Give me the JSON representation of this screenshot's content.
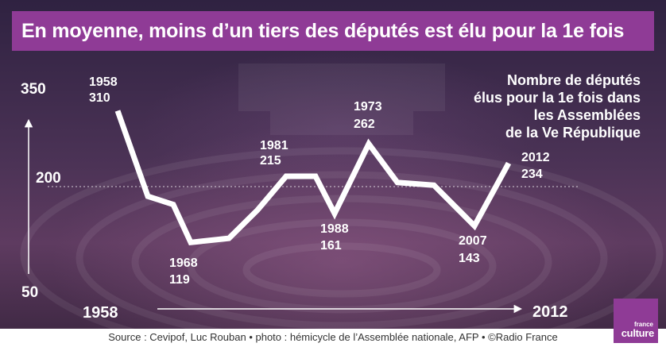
{
  "title": "En moyenne, moins d’un tiers des députés est élu pour la 1e fois",
  "legend_lines": [
    "Nombre de députés",
    "élus pour la 1e fois dans",
    "les Assemblées",
    "de la Ve République"
  ],
  "source": "Source : Cevipof, Luc Rouban  •  photo : hémicycle de l’Assemblée nationale, AFP  •  ©Radio France",
  "logo": {
    "small": "france",
    "big": "culture"
  },
  "colors": {
    "title_bg": "#8f3b96",
    "line": "#ffffff",
    "text": "#ffffff"
  },
  "chart_data": {
    "type": "line",
    "title": "En moyenne, moins d’un tiers des députés est élu pour la 1e fois",
    "x_start_label": "1958",
    "x_end_label": "2012",
    "y_tick_labels": [
      "350",
      "200",
      "50"
    ],
    "y_ticks": [
      350,
      200,
      50
    ],
    "reference_line": 200,
    "ylim": [
      50,
      350
    ],
    "series": [
      {
        "name": "Nombre de députés élus pour la 1e fois dans les Assemblées de la Ve République",
        "points": [
          {
            "x": "1958",
            "y": 310
          },
          {
            "x": "1962",
            "y": 186
          },
          {
            "x": "1967",
            "y": 174
          },
          {
            "x": "1968",
            "y": 119
          },
          {
            "x": "1973b",
            "y": 125
          },
          {
            "x": "1978",
            "y": 166
          },
          {
            "x": "1981",
            "y": 215
          },
          {
            "x": "1986",
            "y": 215
          },
          {
            "x": "1988",
            "y": 161
          },
          {
            "x": "1973",
            "y": 262
          },
          {
            "x": "1997",
            "y": 206
          },
          {
            "x": "2002",
            "y": 202
          },
          {
            "x": "2007",
            "y": 143
          },
          {
            "x": "2012",
            "y": 234
          }
        ]
      }
    ],
    "annotations": [
      {
        "year": "1958",
        "value": "310"
      },
      {
        "year": "1968",
        "value": "119"
      },
      {
        "year": "1981",
        "value": "215"
      },
      {
        "year": "1988",
        "value": "161"
      },
      {
        "year": "1973",
        "value": "262"
      },
      {
        "year": "2007",
        "value": "143"
      },
      {
        "year": "2012",
        "value": "234"
      }
    ]
  }
}
